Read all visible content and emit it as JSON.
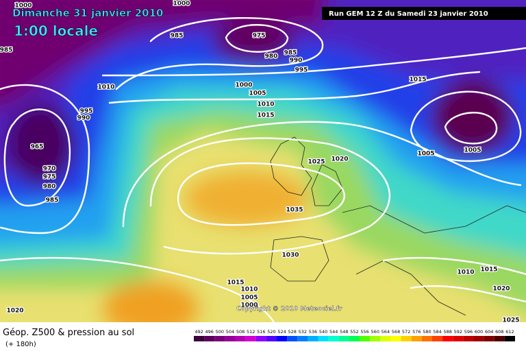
{
  "header": {
    "date": "Dimanche 31 janvier 2010",
    "time": "1:00 locale",
    "run": "Run GEM 12 Z du Samedi 23 janvier 2010"
  },
  "copyright": "Copyright © 2010 Meteociel.fr",
  "isobar_labels": [
    "1000",
    "1000",
    "985",
    "975",
    "980",
    "985",
    "990",
    "995",
    "985",
    "1010",
    "1000",
    "1005",
    "1010",
    "1015",
    "995",
    "990",
    "1015",
    "1005",
    "1005",
    "965",
    "970",
    "975",
    "980",
    "985",
    "1025",
    "1020",
    "1035",
    "1030",
    "1015",
    "1010",
    "1005",
    "1000",
    "1010",
    "1015",
    "1020",
    "1025",
    "1020"
  ],
  "legend": {
    "title": "Géop. Z500 & pression au sol",
    "subtitle": "(+ 180h)",
    "scale": {
      "values": [
        492,
        496,
        500,
        504,
        508,
        512,
        516,
        520,
        524,
        528,
        532,
        536,
        540,
        544,
        548,
        552,
        556,
        560,
        564,
        568,
        572,
        576,
        580,
        584,
        588,
        592,
        596,
        600,
        604,
        608,
        612
      ],
      "colors": [
        "#3c003c",
        "#5a005a",
        "#780078",
        "#960096",
        "#b400b4",
        "#d200d2",
        "#8c00ff",
        "#5000ff",
        "#0000ff",
        "#0050ff",
        "#0080ff",
        "#00b0ff",
        "#00e0ff",
        "#00ffd0",
        "#00ff90",
        "#00ff50",
        "#50ff00",
        "#a0ff00",
        "#e0ff00",
        "#ffff00",
        "#ffd000",
        "#ffa000",
        "#ff7000",
        "#ff4000",
        "#ff0000",
        "#e00000",
        "#c00000",
        "#a00000",
        "#800000",
        "#500000",
        "#000000"
      ]
    }
  }
}
